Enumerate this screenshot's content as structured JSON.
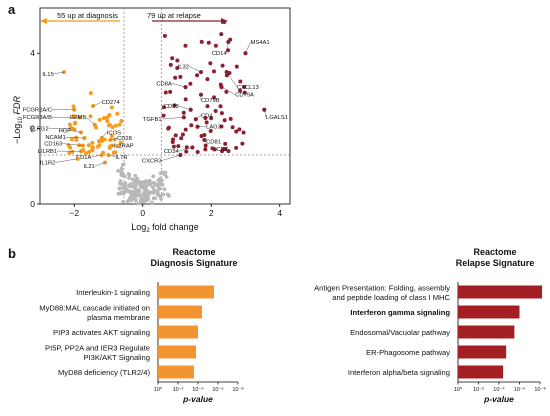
{
  "panel_a": {
    "label": "a",
    "left_arrow_text": "55 up at diagnosis",
    "right_arrow_text": "79 up at relapse",
    "colors": {
      "diagnosis": "#f39c1f",
      "relapse": "#8b2030",
      "ns": "#b8b8b8"
    },
    "chart_data": {
      "type": "scatter",
      "xlabel": "Log2 fold change",
      "ylabel": "-Log10 FDR",
      "xlim": [
        -3,
        4.3
      ],
      "ylim": [
        0,
        5.2
      ],
      "xticks": [
        "-2",
        "0",
        "2",
        "4"
      ],
      "yticks": [
        "0",
        "2",
        "4"
      ],
      "fc_threshold": [
        -0.55,
        0.55
      ],
      "fdr_threshold": 1.3,
      "labels": [
        {
          "text": "MS4A1",
          "x": 3.0,
          "y": 4.0,
          "lx": 3.15,
          "ly": 4.25
        },
        {
          "text": "CD14",
          "x": 2.5,
          "y": 4.3,
          "lx": 2.45,
          "ly": 3.95
        },
        {
          "text": "IL32",
          "x": 1.7,
          "y": 3.5,
          "lx": 1.35,
          "ly": 3.6
        },
        {
          "text": "CXCL13",
          "x": 2.45,
          "y": 3.5,
          "lx": 2.75,
          "ly": 3.05
        },
        {
          "text": "CD8A",
          "x": 1.25,
          "y": 3.1,
          "lx": 0.85,
          "ly": 3.15
        },
        {
          "text": "CD79A",
          "x": 2.3,
          "y": 3.1,
          "lx": 2.7,
          "ly": 2.85
        },
        {
          "text": "CD79B",
          "x": 1.7,
          "y": 2.9,
          "lx": 1.7,
          "ly": 2.7
        },
        {
          "text": "LGALS1",
          "x": 3.55,
          "y": 2.5,
          "lx": 3.6,
          "ly": 2.25
        },
        {
          "text": "CD38",
          "x": 1.4,
          "y": 2.5,
          "lx": 1.05,
          "ly": 2.55
        },
        {
          "text": "TGFB1",
          "x": 1.2,
          "y": 2.3,
          "lx": 0.55,
          "ly": 2.2
        },
        {
          "text": "CD4",
          "x": 1.55,
          "y": 2.25,
          "lx": 1.7,
          "ly": 2.3
        },
        {
          "text": "LAG3",
          "x": 1.6,
          "y": 2.05,
          "lx": 1.85,
          "ly": 2.0
        },
        {
          "text": "CD81",
          "x": 1.8,
          "y": 1.7,
          "lx": 1.85,
          "ly": 1.6
        },
        {
          "text": "CD34",
          "x": 1.45,
          "y": 1.5,
          "lx": 1.05,
          "ly": 1.35
        },
        {
          "text": "CD7",
          "x": 2.1,
          "y": 1.45,
          "lx": 2.15,
          "ly": 1.4
        },
        {
          "text": "CXCR3",
          "x": 1.1,
          "y": 1.3,
          "lx": 0.55,
          "ly": 1.1
        },
        {
          "text": "IL15",
          "x": -2.3,
          "y": 3.5,
          "lx": -2.6,
          "ly": 3.4
        },
        {
          "text": "CD274",
          "x": -1.45,
          "y": 2.6,
          "lx": -1.2,
          "ly": 2.65
        },
        {
          "text": "FCGR2A/C",
          "x": -2.0,
          "y": 2.5,
          "lx": -2.65,
          "ly": 2.45
        },
        {
          "text": "FCGR3A/B",
          "x": -1.85,
          "y": 2.3,
          "lx": -2.65,
          "ly": 2.25
        },
        {
          "text": "GZMB",
          "x": -1.4,
          "y": 2.1,
          "lx": -1.65,
          "ly": 2.25
        },
        {
          "text": "KLRG2",
          "x": -2.1,
          "y": 2.0,
          "lx": -2.75,
          "ly": 1.95
        },
        {
          "text": "HGF",
          "x": -1.8,
          "y": 1.9,
          "lx": -2.1,
          "ly": 1.9
        },
        {
          "text": "NCAM1",
          "x": -1.7,
          "y": 1.75,
          "lx": -2.25,
          "ly": 1.72
        },
        {
          "text": "ICOS",
          "x": -1.2,
          "y": 1.75,
          "lx": -1.05,
          "ly": 1.85
        },
        {
          "text": "CD28",
          "x": -0.95,
          "y": 1.7,
          "lx": -0.75,
          "ly": 1.7
        },
        {
          "text": "IL1RAP",
          "x": -0.9,
          "y": 1.55,
          "lx": -0.85,
          "ly": 1.5
        },
        {
          "text": "CD163",
          "x": -1.75,
          "y": 1.55,
          "lx": -2.35,
          "ly": 1.55
        },
        {
          "text": "LILRB1",
          "x": -1.8,
          "y": 1.4,
          "lx": -2.5,
          "ly": 1.35
        },
        {
          "text": "CD1A",
          "x": -1.2,
          "y": 1.3,
          "lx": -1.5,
          "ly": 1.2
        },
        {
          "text": "IL7R",
          "x": -1.0,
          "y": 1.3,
          "lx": -0.8,
          "ly": 1.2
        },
        {
          "text": "IL1R2",
          "x": -1.9,
          "y": 1.2,
          "lx": -2.55,
          "ly": 1.05
        },
        {
          "text": "IL21",
          "x": -1.1,
          "y": 1.1,
          "lx": -1.4,
          "ly": 0.95
        }
      ]
    }
  },
  "panel_b": {
    "label": "b",
    "xtick_labels": [
      "10⁰",
      "10⁻²",
      "10⁻⁴",
      "10⁻⁶",
      "10⁻⁸"
    ],
    "charts": [
      {
        "type": "bar",
        "title_line1": "Reactome",
        "title_line2": "Diagnosis Signature",
        "xlabel": "p-value",
        "color": "#f39432",
        "categories": [
          "Interleukin-1 signaling",
          "MyD88:MAL cascade initiated on|plasma membrane",
          "PIP3 activates AKT signaling",
          "PI5P, PP2A and IER3 Regulate|PI3K/AKT Signaling",
          "MyD88 deficiency (TLR2/4)"
        ],
        "neg_log10_p": [
          5.6,
          4.4,
          4.0,
          3.8,
          3.6
        ],
        "bold": [
          false,
          false,
          false,
          false,
          false
        ]
      },
      {
        "type": "bar",
        "title_line1": "Reactome",
        "title_line2": "Relapse Signature",
        "xlabel": "p-value",
        "color": "#a31f24",
        "categories": [
          "Antigen Presentation: Folding, assembly|and peptide loading of class I MHC",
          "Interferon gamma signaling",
          "Endosomal/Vacuolar pathway",
          "ER-Phagosome pathway",
          "Interferon alpha/beta signaling"
        ],
        "neg_log10_p": [
          8.2,
          6.0,
          5.5,
          4.7,
          4.4
        ],
        "bold": [
          false,
          true,
          false,
          false,
          false
        ]
      }
    ]
  }
}
